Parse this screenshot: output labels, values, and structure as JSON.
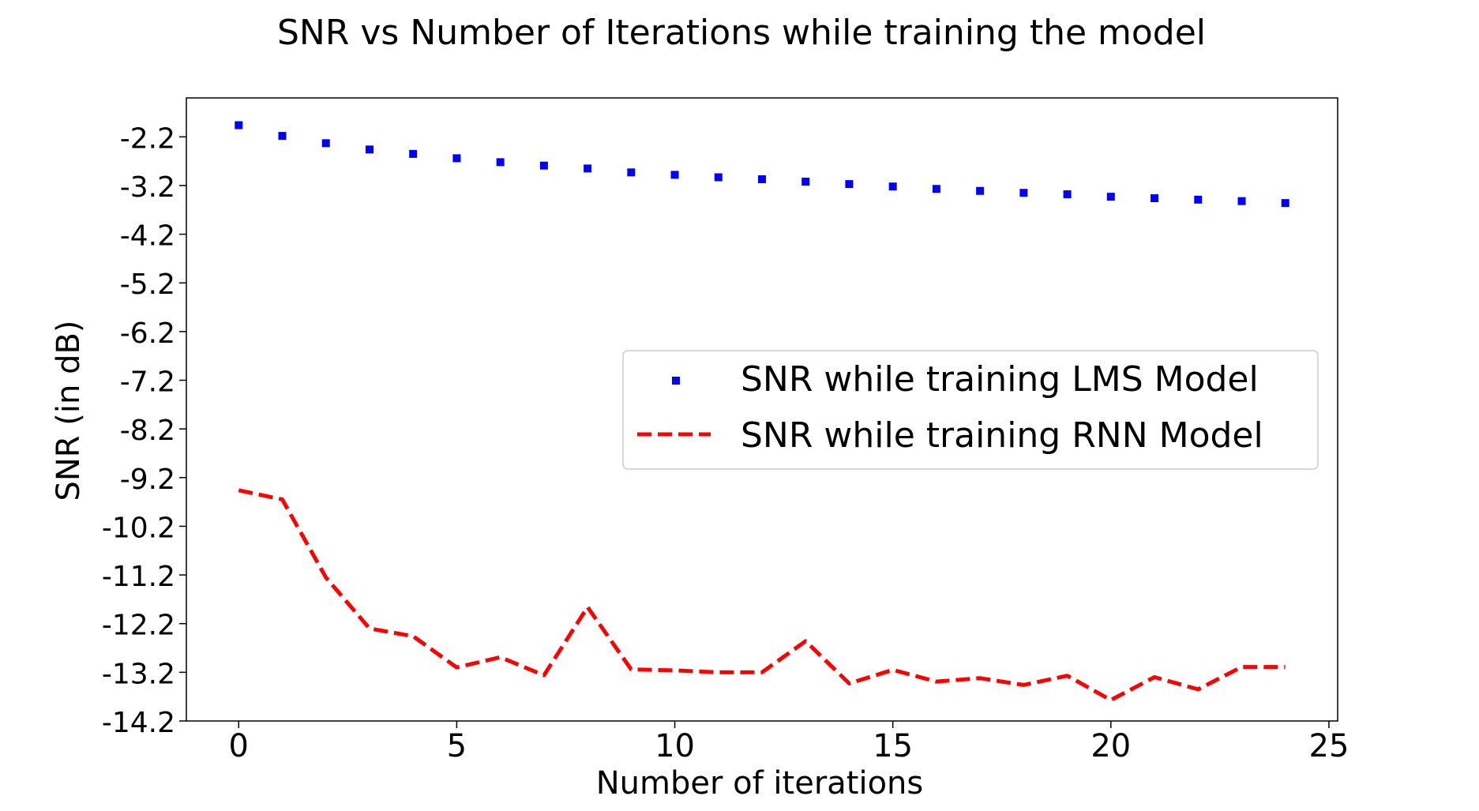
{
  "chart_data": {
    "type": "line",
    "title": "SNR vs Number of Iterations while training the model",
    "xlabel": "Number of iterations",
    "ylabel": "SNR (in dB)",
    "xlim": [
      -1.2,
      25.2
    ],
    "ylim": [
      -14.2,
      -1.4
    ],
    "xticks": [
      0,
      5,
      10,
      15,
      20,
      25
    ],
    "xtick_labels": [
      "0",
      "5",
      "10",
      "15",
      "20",
      "25"
    ],
    "yticks": [
      -2.2,
      -3.2,
      -4.2,
      -5.2,
      -6.2,
      -7.2,
      -8.2,
      -9.2,
      -10.2,
      -11.2,
      -12.2,
      -13.2,
      -14.2
    ],
    "ytick_labels": [
      "-2.2",
      "-3.2",
      "-4.2",
      "-5.2",
      "-6.2",
      "-7.2",
      "-8.2",
      "-9.2",
      "-10.2",
      "-11.2",
      "-12.2",
      "-13.2",
      "-14.2"
    ],
    "grid": false,
    "legend_position": "center-right",
    "x": [
      0,
      1,
      2,
      3,
      4,
      5,
      6,
      7,
      8,
      9,
      10,
      11,
      12,
      13,
      14,
      15,
      16,
      17,
      18,
      19,
      20,
      21,
      22,
      23,
      24
    ],
    "series": [
      {
        "name": "SNR while training LMS Model",
        "style": "markers",
        "marker": "square",
        "color": "#0000ff",
        "values": [
          -1.96,
          -2.18,
          -2.33,
          -2.46,
          -2.55,
          -2.64,
          -2.72,
          -2.79,
          -2.85,
          -2.93,
          -2.98,
          -3.03,
          -3.07,
          -3.12,
          -3.17,
          -3.22,
          -3.27,
          -3.31,
          -3.35,
          -3.38,
          -3.43,
          -3.46,
          -3.49,
          -3.52,
          -3.56
        ]
      },
      {
        "name": "SNR while training RNN Model",
        "style": "dashed",
        "color": "#ff0000",
        "values": [
          -9.46,
          -9.65,
          -11.25,
          -12.3,
          -12.46,
          -13.1,
          -12.89,
          -13.26,
          -11.86,
          -13.14,
          -13.16,
          -13.2,
          -13.2,
          -12.56,
          -13.43,
          -13.15,
          -13.39,
          -13.32,
          -13.46,
          -13.27,
          -13.77,
          -13.3,
          -13.55,
          -13.09,
          -13.09
        ]
      }
    ]
  }
}
